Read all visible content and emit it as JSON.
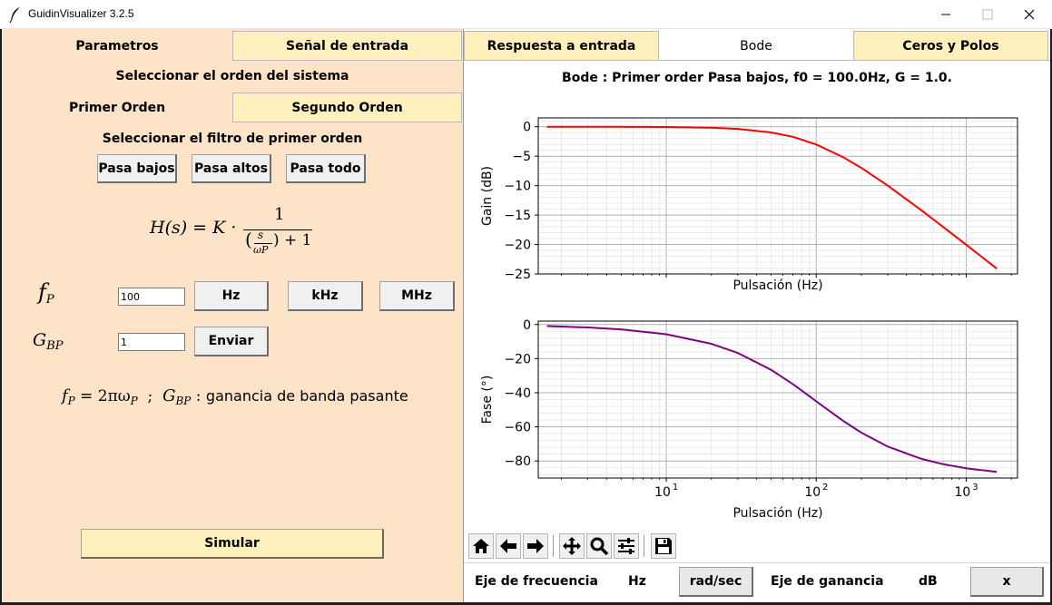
{
  "window": {
    "title": "GuidinVisualizer 3.2.5"
  },
  "left": {
    "tabs": [
      {
        "label": "Parametros",
        "active": true
      },
      {
        "label": "Señal de entrada",
        "active": false
      }
    ],
    "order_heading": "Seleccionar el orden del sistema",
    "order_options": [
      "Primer Orden",
      "Segundo Orden"
    ],
    "filter_heading": "Seleccionar el filtro de primer orden",
    "filter_buttons": [
      "Pasa bajos",
      "Pasa altos",
      "Pasa todo"
    ],
    "formula": {
      "lhs": "H(s) = K ·",
      "numerator": "1",
      "denominator_var": "s",
      "denominator_sub": "ωP",
      "denominator_tail": ") + 1"
    },
    "fp": {
      "symbol": "f",
      "subscript": "P",
      "value": "100",
      "units": [
        "Hz",
        "kHz",
        "MHz"
      ]
    },
    "gbp": {
      "symbol": "G",
      "subscript": "BP",
      "value": "1",
      "submit": "Enviar"
    },
    "legend": {
      "eq_lhs": "f",
      "eq_lhs_sub": "P",
      "eq_rhs": " = 2πω",
      "eq_rhs_sub": "P",
      "sep": "  ;  ",
      "g_sym": "G",
      "g_sub": "BP",
      "colon": " : ",
      "text": "ganancia de banda pasante"
    },
    "simulate": "Simular"
  },
  "right": {
    "tabs": [
      {
        "label": "Respuesta a entrada",
        "active": false
      },
      {
        "label": "Bode",
        "active": true
      },
      {
        "label": "Ceros y Polos",
        "active": false
      }
    ],
    "bottom": {
      "freq_label": "Eje de frecuencia",
      "freq_unit": "Hz",
      "freq_button": "rad/sec",
      "gain_label": "Eje de ganancia",
      "gain_unit": "dB",
      "gain_button": "x"
    },
    "toolbar": [
      "home-icon",
      "back-arrow-icon",
      "forward-arrow-icon",
      "pan-icon",
      "zoom-icon",
      "configure-subplots-icon",
      "save-icon"
    ]
  },
  "chart_data": [
    {
      "type": "line",
      "title": "Bode : Primer order Pasa bajos, f0 = 100.0Hz, G = 1.0.",
      "xlabel": "Pulsación (Hz)",
      "ylabel": "Gain (dB)",
      "xscale": "log",
      "xlim": [
        1.4,
        2200
      ],
      "ylim": [
        -25,
        1.5
      ],
      "yticks": [
        0,
        -5,
        -10,
        -15,
        -20,
        -25
      ],
      "grid": true,
      "series": [
        {
          "color": "#ff0000",
          "x": [
            1.6,
            3,
            5,
            10,
            20,
            30,
            50,
            70,
            100,
            150,
            200,
            300,
            500,
            700,
            1000,
            1600
          ],
          "values": [
            0,
            -0.004,
            -0.011,
            -0.04,
            -0.17,
            -0.37,
            -0.97,
            -1.71,
            -3.01,
            -5.12,
            -6.99,
            -10.0,
            -14.15,
            -17.0,
            -20.04,
            -24.1
          ]
        }
      ]
    },
    {
      "type": "line",
      "xlabel": "Pulsación (Hz)",
      "ylabel": "Fase (°)",
      "xscale": "log",
      "xlim": [
        1.4,
        2200
      ],
      "ylim": [
        -90,
        2
      ],
      "yticks": [
        0,
        -20,
        -40,
        -60,
        -80
      ],
      "xticklabels": [
        "10",
        "10",
        "10"
      ],
      "xticklabel_exponents": [
        "1",
        "2",
        "3"
      ],
      "xtick_values": [
        10,
        100,
        1000
      ],
      "grid": true,
      "series": [
        {
          "color": "#800080",
          "x": [
            1.6,
            3,
            5,
            10,
            20,
            30,
            50,
            70,
            100,
            150,
            200,
            300,
            500,
            700,
            1000,
            1600
          ],
          "values": [
            -0.92,
            -1.72,
            -2.86,
            -5.71,
            -11.31,
            -16.7,
            -26.57,
            -34.99,
            -45.0,
            -56.31,
            -63.43,
            -71.57,
            -78.69,
            -81.87,
            -84.29,
            -86.42
          ]
        }
      ]
    }
  ]
}
